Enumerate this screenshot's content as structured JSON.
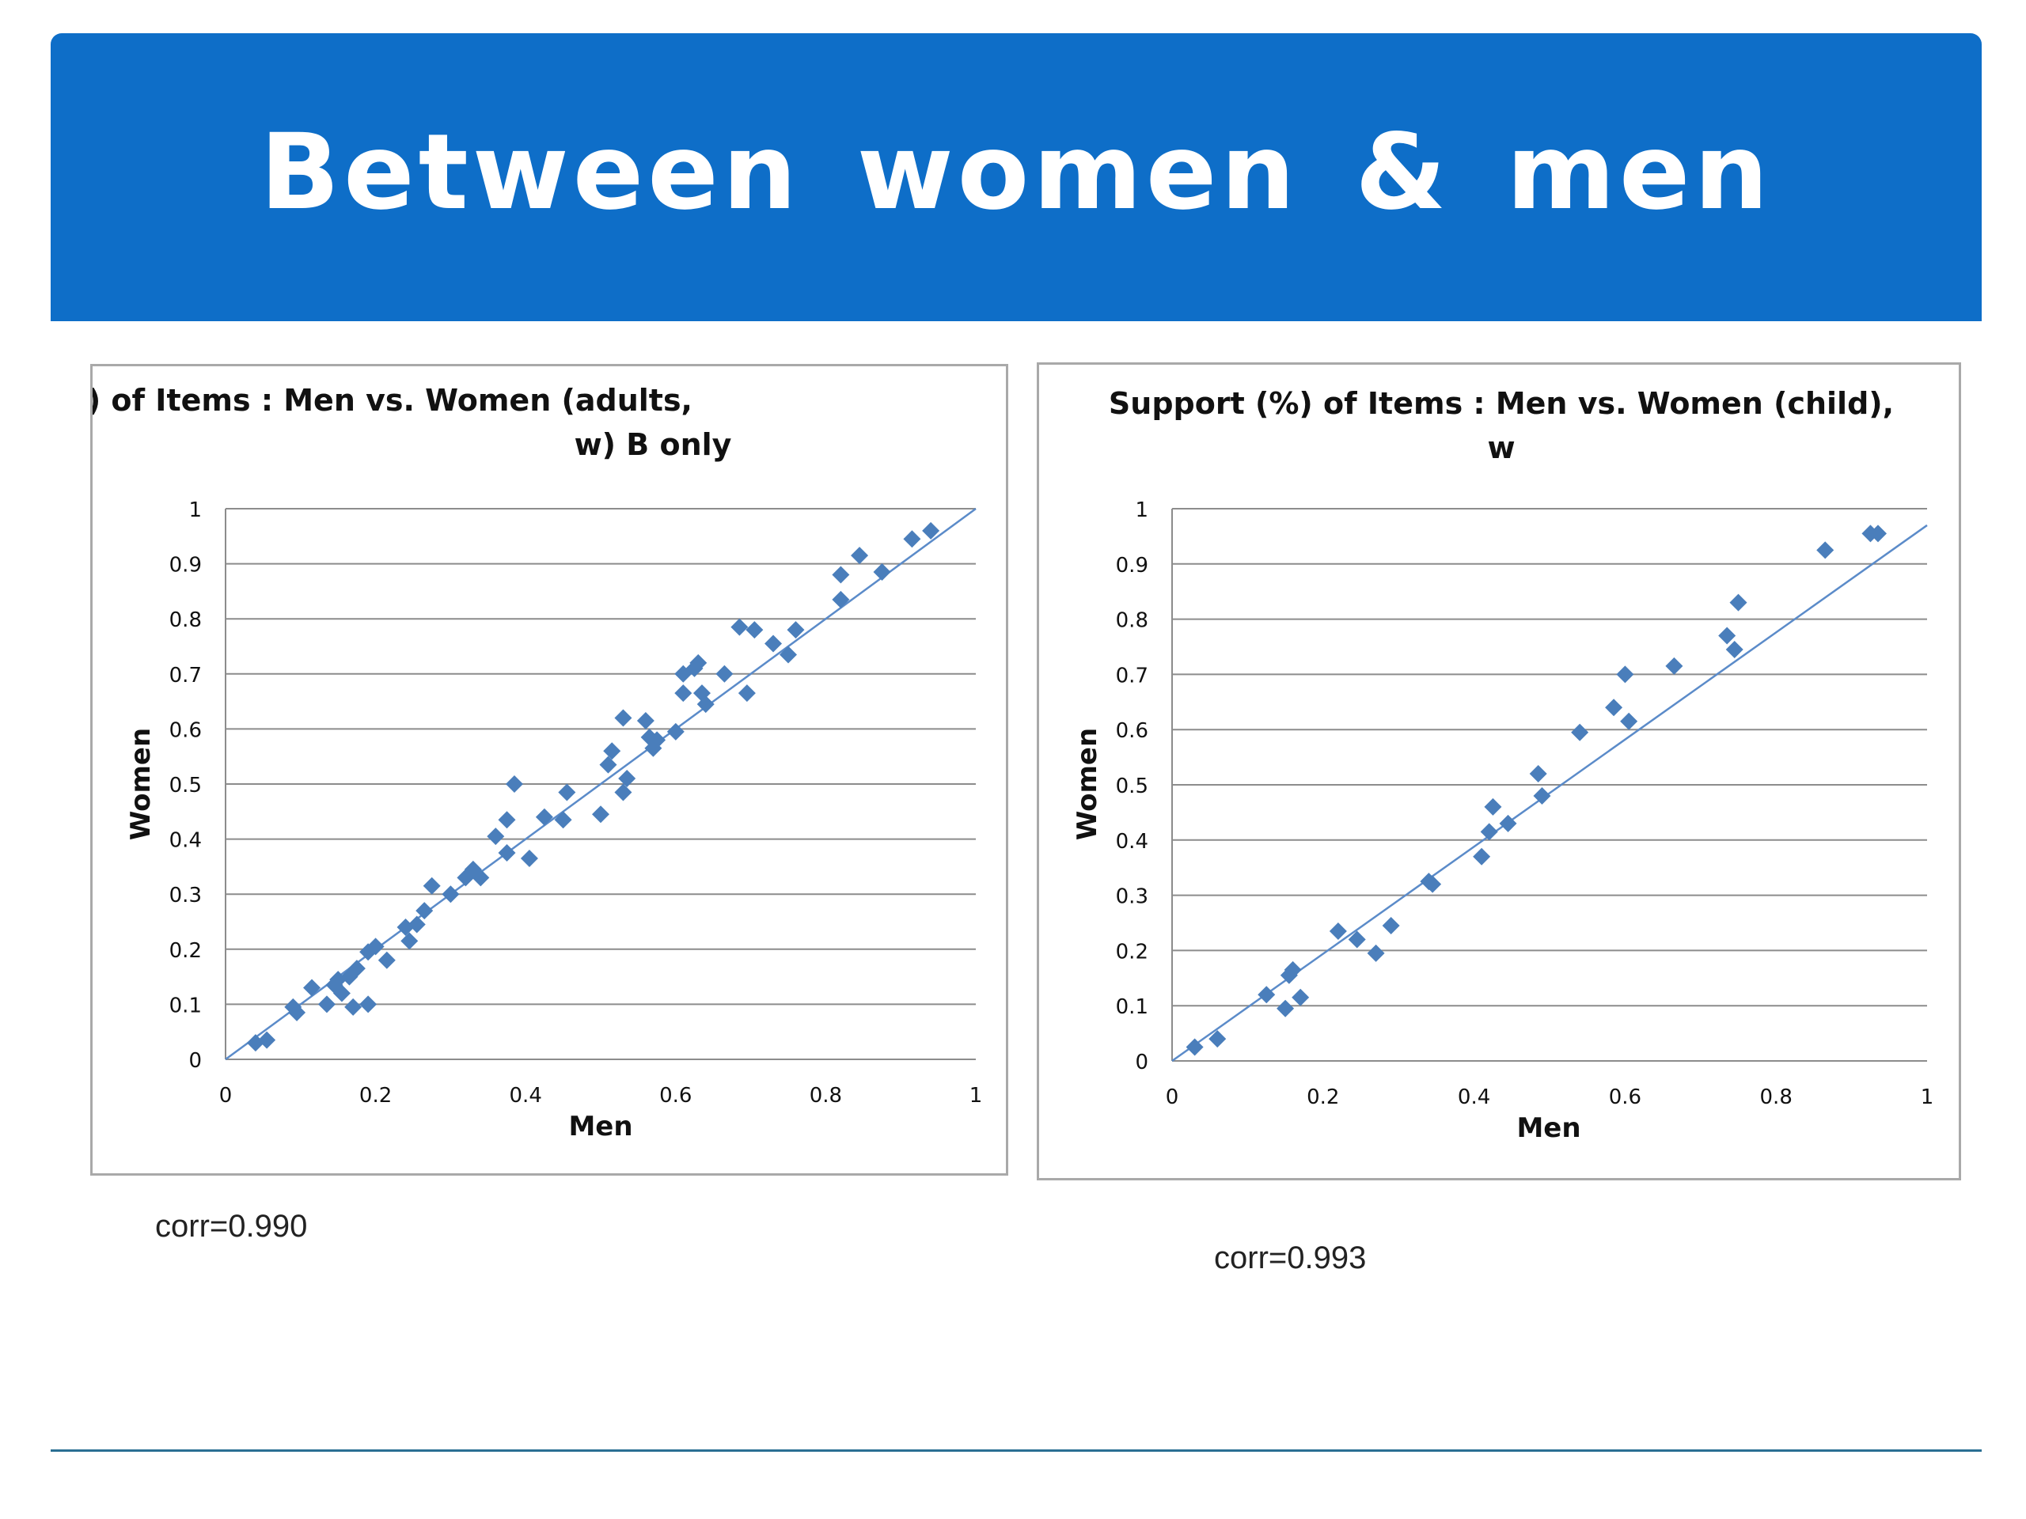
{
  "slide": {
    "title": "Between women & men",
    "accent_color": "#0e6ec8"
  },
  "chart_data": [
    {
      "type": "scatter",
      "title_lines": [
        "Support (%) of Items : Men vs. Women (adults,",
        "w) B only"
      ],
      "xlabel": "Men",
      "ylabel": "Women",
      "xlim": [
        0,
        1
      ],
      "ylim": [
        0,
        1
      ],
      "xticks": [
        "0",
        "0.2",
        "0.4",
        "0.6",
        "0.8",
        "1"
      ],
      "yticks": [
        "0",
        "0.1",
        "0.2",
        "0.3",
        "0.4",
        "0.5",
        "0.6",
        "0.7",
        "0.8",
        "0.9",
        "1"
      ],
      "grid": "horizontal",
      "marker_color": "#4a7ebb",
      "trendline": [
        [
          0,
          0
        ],
        [
          1,
          1
        ]
      ],
      "points": [
        [
          0.04,
          0.03
        ],
        [
          0.055,
          0.035
        ],
        [
          0.09,
          0.095
        ],
        [
          0.095,
          0.085
        ],
        [
          0.115,
          0.13
        ],
        [
          0.135,
          0.1
        ],
        [
          0.145,
          0.135
        ],
        [
          0.15,
          0.145
        ],
        [
          0.155,
          0.12
        ],
        [
          0.165,
          0.15
        ],
        [
          0.17,
          0.095
        ],
        [
          0.175,
          0.165
        ],
        [
          0.19,
          0.1
        ],
        [
          0.19,
          0.195
        ],
        [
          0.2,
          0.205
        ],
        [
          0.215,
          0.18
        ],
        [
          0.24,
          0.24
        ],
        [
          0.245,
          0.215
        ],
        [
          0.255,
          0.245
        ],
        [
          0.265,
          0.27
        ],
        [
          0.275,
          0.315
        ],
        [
          0.3,
          0.3
        ],
        [
          0.32,
          0.33
        ],
        [
          0.33,
          0.345
        ],
        [
          0.34,
          0.33
        ],
        [
          0.36,
          0.405
        ],
        [
          0.375,
          0.435
        ],
        [
          0.375,
          0.375
        ],
        [
          0.385,
          0.5
        ],
        [
          0.405,
          0.365
        ],
        [
          0.425,
          0.44
        ],
        [
          0.45,
          0.435
        ],
        [
          0.455,
          0.485
        ],
        [
          0.5,
          0.445
        ],
        [
          0.51,
          0.535
        ],
        [
          0.515,
          0.56
        ],
        [
          0.53,
          0.62
        ],
        [
          0.53,
          0.485
        ],
        [
          0.535,
          0.51
        ],
        [
          0.56,
          0.615
        ],
        [
          0.565,
          0.585
        ],
        [
          0.57,
          0.565
        ],
        [
          0.575,
          0.58
        ],
        [
          0.6,
          0.595
        ],
        [
          0.61,
          0.7
        ],
        [
          0.61,
          0.665
        ],
        [
          0.625,
          0.71
        ],
        [
          0.63,
          0.72
        ],
        [
          0.635,
          0.665
        ],
        [
          0.64,
          0.645
        ],
        [
          0.665,
          0.7
        ],
        [
          0.685,
          0.785
        ],
        [
          0.695,
          0.665
        ],
        [
          0.705,
          0.78
        ],
        [
          0.73,
          0.755
        ],
        [
          0.75,
          0.735
        ],
        [
          0.76,
          0.78
        ],
        [
          0.82,
          0.835
        ],
        [
          0.82,
          0.88
        ],
        [
          0.845,
          0.915
        ],
        [
          0.875,
          0.885
        ],
        [
          0.915,
          0.945
        ],
        [
          0.94,
          0.96
        ]
      ]
    },
    {
      "type": "scatter",
      "title_lines": [
        "Support (%) of Items : Men vs. Women   (child),",
        "w"
      ],
      "xlabel": "Men",
      "ylabel": "Women",
      "xlim": [
        0,
        1
      ],
      "ylim": [
        0,
        1
      ],
      "xticks": [
        "0",
        "0.2",
        "0.4",
        "0.6",
        "0.8",
        "1"
      ],
      "yticks": [
        "0",
        "0.1",
        "0.2",
        "0.3",
        "0.4",
        "0.5",
        "0.6",
        "0.7",
        "0.8",
        "0.9",
        "1"
      ],
      "grid": "horizontal",
      "marker_color": "#4a7ebb",
      "trendline": [
        [
          0,
          0
        ],
        [
          1,
          0.97
        ]
      ],
      "points": [
        [
          0.03,
          0.025
        ],
        [
          0.06,
          0.04
        ],
        [
          0.125,
          0.12
        ],
        [
          0.15,
          0.095
        ],
        [
          0.155,
          0.155
        ],
        [
          0.16,
          0.165
        ],
        [
          0.17,
          0.115
        ],
        [
          0.22,
          0.235
        ],
        [
          0.245,
          0.22
        ],
        [
          0.27,
          0.195
        ],
        [
          0.29,
          0.245
        ],
        [
          0.34,
          0.325
        ],
        [
          0.345,
          0.32
        ],
        [
          0.41,
          0.37
        ],
        [
          0.42,
          0.415
        ],
        [
          0.425,
          0.46
        ],
        [
          0.445,
          0.43
        ],
        [
          0.485,
          0.52
        ],
        [
          0.49,
          0.48
        ],
        [
          0.54,
          0.595
        ],
        [
          0.585,
          0.64
        ],
        [
          0.6,
          0.7
        ],
        [
          0.605,
          0.615
        ],
        [
          0.665,
          0.715
        ],
        [
          0.735,
          0.77
        ],
        [
          0.745,
          0.745
        ],
        [
          0.75,
          0.83
        ],
        [
          0.865,
          0.925
        ],
        [
          0.925,
          0.955
        ],
        [
          0.935,
          0.955
        ]
      ]
    }
  ],
  "annotations": {
    "left_corr": "corr=0.990",
    "right_corr": "corr=0.993"
  }
}
